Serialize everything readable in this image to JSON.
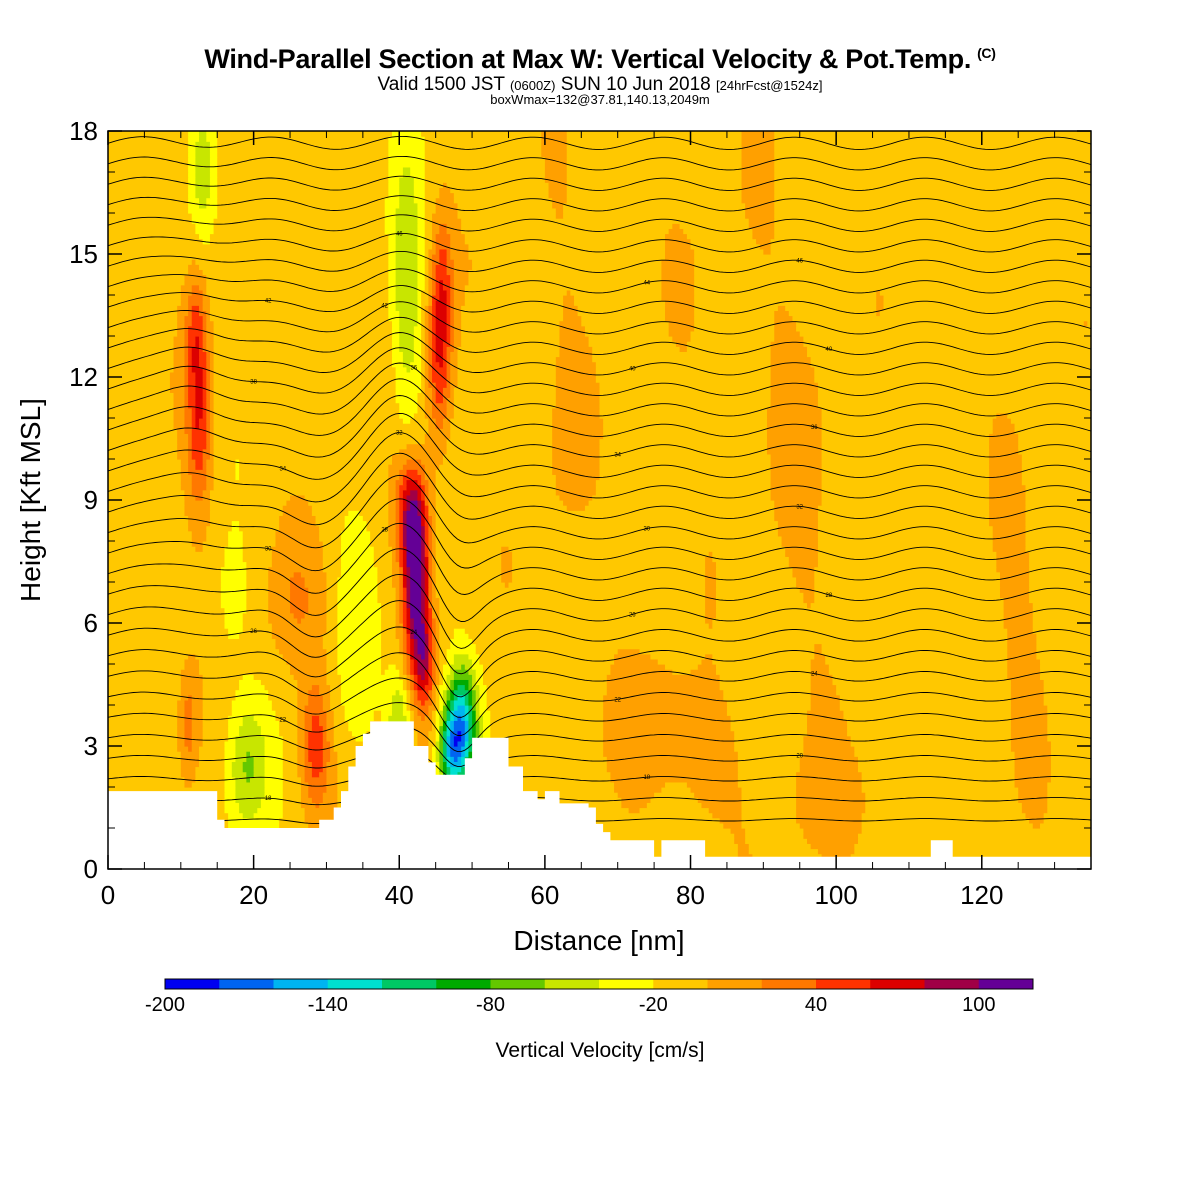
{
  "header": {
    "title": "Wind-Parallel Section at Max W: Vertical Velocity & Pot.Temp.",
    "copyright": "(C)",
    "valid_prefix": "Valid 1500 JST",
    "valid_utc": "(0600Z)",
    "valid_date": "SUN 10 Jun 2018",
    "forecast": "[24hrFcst@1524z]",
    "boxmax": "boxWmax=132@37.81,140.13,2049m"
  },
  "chart_data": {
    "type": "heatmap",
    "title": "Wind-Parallel Section at Max W: Vertical Velocity & Pot.Temp.",
    "xlabel": "Distance [nm]",
    "ylabel": "Height [Kft MSL]",
    "xlim": [
      0,
      135
    ],
    "ylim": [
      0,
      18
    ],
    "xticks": [
      0,
      20,
      40,
      60,
      80,
      100,
      120
    ],
    "xtick_labels": [
      "0",
      "20",
      "40",
      "60",
      "80",
      "100",
      "120"
    ],
    "yticks": [
      0,
      3,
      6,
      9,
      12,
      15,
      18
    ],
    "ytick_labels": [
      "0",
      "3",
      "6",
      "9",
      "12",
      "15",
      "18"
    ],
    "colorbar": {
      "title": "Vertical Velocity [cm/s]",
      "min": -200,
      "step": 20,
      "tick_values": [
        -200,
        -140,
        -80,
        -20,
        40,
        100
      ],
      "tick_labels": [
        "-200",
        "-140",
        "-80",
        "-20",
        "40",
        "100"
      ],
      "colors": [
        "#0000f0",
        "#0064f0",
        "#00b4f0",
        "#00e0d0",
        "#00c864",
        "#00aa00",
        "#64c800",
        "#c8e600",
        "#ffff00",
        "#ffc800",
        "#ffa000",
        "#ff7800",
        "#ff3200",
        "#dc0000",
        "#a00046",
        "#640096"
      ]
    },
    "background_w": -10,
    "w_features": [
      {
        "x": 42.3,
        "y": 7.0,
        "sx": 1.3,
        "sy": 1.5,
        "amp": 128,
        "note": "max updraft"
      },
      {
        "x": 41.5,
        "y": 8.8,
        "sx": 1.5,
        "sy": 0.9,
        "amp": 70
      },
      {
        "x": 43.5,
        "y": 5.0,
        "sx": 1.0,
        "sy": 0.8,
        "amp": 60
      },
      {
        "x": 45.5,
        "y": 12.5,
        "sx": 1.2,
        "sy": 1.6,
        "amp": 70
      },
      {
        "x": 46.0,
        "y": 14.5,
        "sx": 1.0,
        "sy": 1.2,
        "amp": 35
      },
      {
        "x": 12.5,
        "y": 11.0,
        "sx": 1.2,
        "sy": 1.6,
        "amp": 65
      },
      {
        "x": 12.0,
        "y": 13.2,
        "sx": 1.0,
        "sy": 1.0,
        "amp": 40
      },
      {
        "x": 28.5,
        "y": 3.0,
        "sx": 1.4,
        "sy": 1.1,
        "amp": 60
      },
      {
        "x": 26.0,
        "y": 6.5,
        "sx": 3.0,
        "sy": 1.2,
        "amp": 25
      },
      {
        "x": 11.0,
        "y": 3.5,
        "sx": 0.9,
        "sy": 1.0,
        "amp": 35
      },
      {
        "x": 48.5,
        "y": 3.5,
        "sx": 1.5,
        "sy": 1.0,
        "amp": -135,
        "note": "min downdraft"
      },
      {
        "x": 47.0,
        "y": 2.8,
        "sx": 1.2,
        "sy": 0.7,
        "amp": -80
      },
      {
        "x": 40.0,
        "y": 3.5,
        "sx": 1.2,
        "sy": 1.0,
        "amp": -55
      },
      {
        "x": 41.0,
        "y": 14.0,
        "sx": 1.5,
        "sy": 2.5,
        "amp": -45
      },
      {
        "x": 13.0,
        "y": 17.0,
        "sx": 1.0,
        "sy": 1.0,
        "amp": -35
      },
      {
        "x": 19.0,
        "y": 2.5,
        "sx": 2.0,
        "sy": 1.2,
        "amp": -50
      },
      {
        "x": 17.0,
        "y": 6.5,
        "sx": 1.5,
        "sy": 1.0,
        "amp": -20
      },
      {
        "x": 34.0,
        "y": 6.0,
        "sx": 2.0,
        "sy": 2.0,
        "amp": -20
      },
      {
        "x": 75.0,
        "y": 3.5,
        "sx": 4.0,
        "sy": 1.2,
        "amp": 25
      },
      {
        "x": 82.0,
        "y": 2.5,
        "sx": 3.0,
        "sy": 1.2,
        "amp": 20
      },
      {
        "x": 100.0,
        "y": 1.5,
        "sx": 5.0,
        "sy": 1.0,
        "amp": 15
      },
      {
        "x": 62.0,
        "y": 11.0,
        "sx": 3.0,
        "sy": 4.0,
        "amp": 12
      },
      {
        "x": 95.0,
        "y": 9.0,
        "sx": 4.0,
        "sy": 5.0,
        "amp": 10
      },
      {
        "x": 125.0,
        "y": 6.0,
        "sx": 3.0,
        "sy": 3.0,
        "amp": 12
      },
      {
        "x": 85.0,
        "y": 14.0,
        "sx": 5.0,
        "sy": 3.0,
        "amp": 8
      }
    ],
    "terrain": [
      [
        0,
        1.9
      ],
      [
        14,
        1.9
      ],
      [
        15,
        1.2
      ],
      [
        16,
        1.0
      ],
      [
        28,
        1.0
      ],
      [
        29,
        1.2
      ],
      [
        31,
        1.5
      ],
      [
        32,
        1.9
      ],
      [
        33,
        2.5
      ],
      [
        34,
        3.0
      ],
      [
        35,
        3.3
      ],
      [
        36,
        3.6
      ],
      [
        41,
        3.6
      ],
      [
        42,
        3.0
      ],
      [
        44,
        2.6
      ],
      [
        45,
        2.3
      ],
      [
        48,
        2.3
      ],
      [
        49,
        2.7
      ],
      [
        50,
        3.2
      ],
      [
        53,
        3.2
      ],
      [
        55,
        2.5
      ],
      [
        57,
        1.9
      ],
      [
        59,
        1.7
      ],
      [
        60,
        1.9
      ],
      [
        62,
        1.6
      ],
      [
        66,
        1.5
      ],
      [
        67,
        1.1
      ],
      [
        68,
        0.9
      ],
      [
        69,
        0.7
      ],
      [
        74,
        0.7
      ],
      [
        75,
        0.3
      ],
      [
        76,
        0.7
      ],
      [
        80,
        0.7
      ],
      [
        82,
        0.3
      ],
      [
        112,
        0.3
      ],
      [
        113,
        0.7
      ],
      [
        115,
        0.7
      ],
      [
        116,
        0.3
      ],
      [
        135,
        0.3
      ]
    ],
    "theta_contour_labels": [
      "46",
      "46",
      "44",
      "42",
      "42",
      "40",
      "40",
      "38",
      "36",
      "36",
      "34",
      "34",
      "32",
      "32",
      "30",
      "30",
      "28",
      "28",
      "26",
      "26",
      "24",
      "24",
      "22",
      "22",
      "20",
      "20",
      "18",
      "18",
      "16"
    ],
    "theta_contours": {
      "count": 34,
      "spacing_kft": 0.5
    }
  }
}
